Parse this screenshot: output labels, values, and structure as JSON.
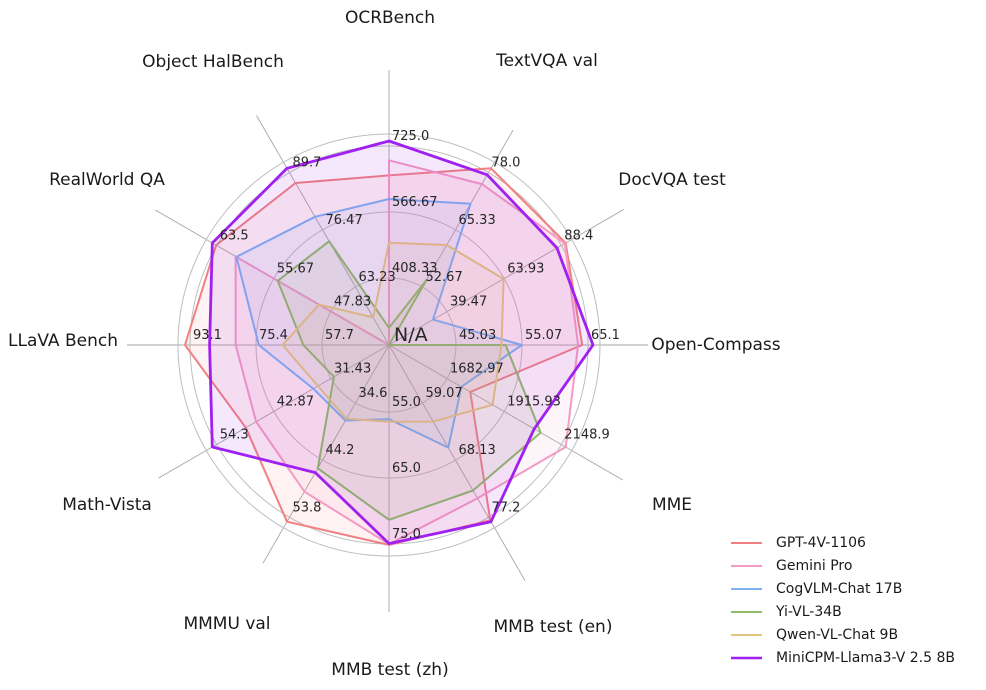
{
  "figure": {
    "background": "#ffffff",
    "grid_color": "#bdbdbd",
    "spoke_color": "#a6a6a6",
    "text_color": "#1a1a1a",
    "tick_text_color": "#262626"
  },
  "chart_data": {
    "type": "radar",
    "title": "",
    "grid": true,
    "legend_position": "lower right",
    "center_label": "N/A",
    "axes": [
      {
        "label": "OCRBench",
        "min": 250,
        "max": 725,
        "tick_labels": [
          "408.33",
          "566.67",
          "725.0"
        ]
      },
      {
        "label": "TextVQA val",
        "min": 40,
        "max": 78.0,
        "tick_labels": [
          "52.67",
          "65.33",
          "78.0"
        ]
      },
      {
        "label": "DocVQA test",
        "min": 15,
        "max": 88.4,
        "tick_labels": [
          "39.47",
          "63.93",
          "88.4"
        ]
      },
      {
        "label": "Open-Compass",
        "min": 35,
        "max": 65.1,
        "tick_labels": [
          "45.03",
          "55.07",
          "65.1"
        ]
      },
      {
        "label": "MME",
        "min": 1450,
        "max": 2148.9,
        "tick_labels": [
          "1682.97",
          "1915.93",
          "2148.9"
        ]
      },
      {
        "label": "MMB test (en)",
        "min": 50,
        "max": 77.2,
        "tick_labels": [
          "59.07",
          "68.13",
          "77.2"
        ]
      },
      {
        "label": "MMB test (zh)",
        "min": 45,
        "max": 75.0,
        "tick_labels": [
          "55.0",
          "65.0",
          "75.0"
        ]
      },
      {
        "label": "MMMU val",
        "min": 25,
        "max": 53.8,
        "tick_labels": [
          "34.6",
          "44.2",
          "53.8"
        ]
      },
      {
        "label": "Math-Vista",
        "min": 20,
        "max": 54.3,
        "tick_labels": [
          "31.43",
          "42.87",
          "54.3"
        ]
      },
      {
        "label": "LLaVA Bench",
        "min": 40,
        "max": 93.1,
        "tick_labels": [
          "57.7",
          "75.4",
          "93.1"
        ]
      },
      {
        "label": "RealWorld QA",
        "min": 40,
        "max": 63.5,
        "tick_labels": [
          "47.83",
          "55.67",
          "63.5"
        ]
      },
      {
        "label": "Object HalBench",
        "min": 50,
        "max": 89.7,
        "tick_labels": [
          "63.23",
          "76.47",
          "89.7"
        ]
      }
    ],
    "series": [
      {
        "name": "GPT-4V-1106",
        "color": "#F18080",
        "line_width": 2,
        "values": [
          645,
          78.0,
          88.4,
          63.5,
          1771.5,
          77.0,
          74.4,
          53.8,
          47.8,
          93.1,
          63.0,
          86.4
        ]
      },
      {
        "name": "Gemini Pro",
        "color": "#F49AC6",
        "line_width": 2,
        "values": [
          680,
          74.6,
          88.1,
          62.9,
          2148.9,
          73.6,
          74.3,
          48.9,
          45.8,
          79.9,
          60.4,
          null
        ]
      },
      {
        "name": "CogVLM-Chat 17B",
        "color": "#7FB2F0",
        "line_width": 2,
        "values": [
          590,
          70.4,
          33.3,
          54.6,
          1736.6,
          65.8,
          55.9,
          37.3,
          34.7,
          73.9,
          60.3,
          78.8
        ]
      },
      {
        "name": "Yi-VL-34B",
        "color": "#8FBC66",
        "line_width": 2,
        "values": [
          290,
          54.0,
          null,
          52.2,
          2050.2,
          72.4,
          70.7,
          45.1,
          30.7,
          62.3,
          54.8,
          73.3
        ]
      },
      {
        "name": "Qwen-VL-Chat 9B",
        "color": "#E4C57E",
        "line_width": 2,
        "values": [
          488,
          61.5,
          62.6,
          51.6,
          1860.0,
          61.8,
          56.3,
          37.0,
          33.8,
          67.7,
          49.3,
          56.2
        ]
      },
      {
        "name": "MiniCPM-Llama3-V 2.5 8B",
        "color": "#A020F0",
        "line_width": 2.8,
        "values": [
          725,
          76.6,
          84.8,
          65.1,
          2024.6,
          77.2,
          74.2,
          45.8,
          54.3,
          86.7,
          63.5,
          89.7
        ]
      }
    ]
  }
}
